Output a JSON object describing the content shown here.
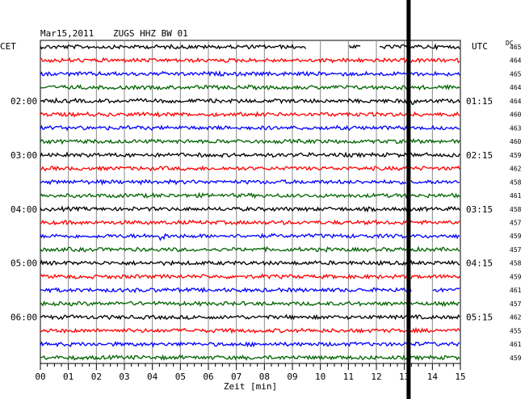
{
  "header": {
    "date": "Mar15,2011",
    "station": "ZUGS HHZ BW 01",
    "left_zone": "CET",
    "right_zone": "UTC",
    "dc_label": "DC"
  },
  "chart_data": {
    "type": "line",
    "title": "Mar15,2011   ZUGS HHZ BW 01",
    "xlabel": "Zeit [min]",
    "xlim": [
      0,
      15
    ],
    "xticks": [
      "00",
      "01",
      "02",
      "03",
      "04",
      "05",
      "06",
      "07",
      "08",
      "09",
      "10",
      "11",
      "12",
      "13",
      "14",
      "15"
    ],
    "trace_colors": [
      "#000000",
      "#ff0000",
      "#0000ff",
      "#006400"
    ],
    "left_hour_labels": [
      {
        "trace_index": 4,
        "label": "02:00"
      },
      {
        "trace_index": 8,
        "label": "03:00"
      },
      {
        "trace_index": 12,
        "label": "04:00"
      },
      {
        "trace_index": 16,
        "label": "05:00"
      },
      {
        "trace_index": 20,
        "label": "06:00"
      }
    ],
    "right_hour_labels": [
      {
        "trace_index": 4,
        "label": "01:15"
      },
      {
        "trace_index": 8,
        "label": "02:15"
      },
      {
        "trace_index": 12,
        "label": "03:15"
      },
      {
        "trace_index": 16,
        "label": "04:15"
      },
      {
        "trace_index": 20,
        "label": "05:15"
      }
    ],
    "dc_offsets": [
      465,
      464,
      465,
      464,
      464,
      460,
      463,
      460,
      459,
      462,
      458,
      461,
      458,
      457,
      459,
      457,
      458,
      459,
      461,
      457,
      462,
      455,
      461,
      459
    ],
    "data_gaps": [
      {
        "trace_index": 0,
        "from_min": 9.5,
        "to_min": 11.0
      },
      {
        "trace_index": 0,
        "from_min": 11.45,
        "to_min": 12.1
      },
      {
        "trace_index": 10,
        "from_min": 13.1,
        "to_min": 13.2
      },
      {
        "trace_index": 18,
        "from_min": 13.25,
        "to_min": 14.0
      }
    ],
    "events": [
      {
        "trace_index": 14,
        "at_min": 4.3,
        "note": "small transient"
      },
      {
        "trace_index": 4,
        "at_min": 13.2,
        "note": "large transient"
      }
    ],
    "marker_line": {
      "at_min": 13.15,
      "color": "#000000"
    },
    "grid": true
  }
}
